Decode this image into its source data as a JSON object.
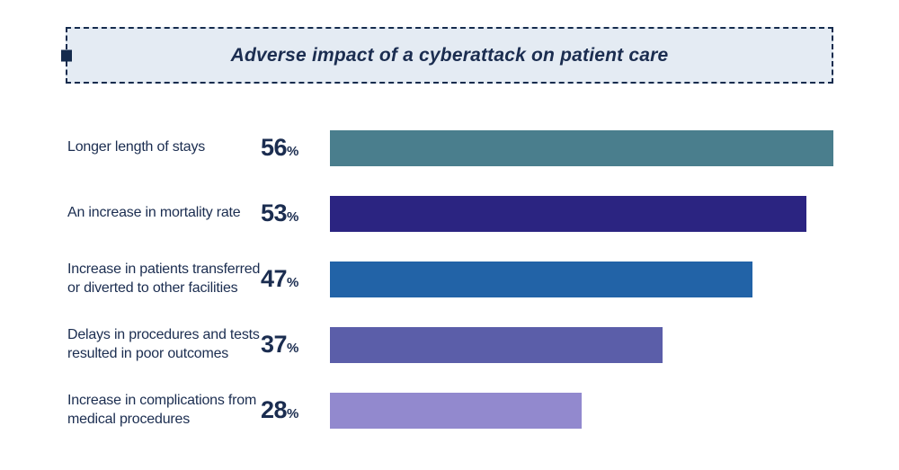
{
  "header": {
    "title": "Adverse impact of a cyberattack on patient care"
  },
  "colors": {
    "text_navy": "#1b2d50",
    "title_box_background": "#e4ebf3",
    "title_box_border": "#152b4d",
    "bar_teal": "#4a7e8d",
    "bar_indigo": "#2b2481",
    "bar_blue": "#2263a7",
    "bar_purple": "#5b5ea9",
    "bar_light_purple": "#9289ce"
  },
  "chart_data": {
    "type": "bar",
    "orientation": "horizontal",
    "title": "Adverse impact of a cyberattack on patient care",
    "unit": "%",
    "xlim": [
      0,
      62
    ],
    "grid": false,
    "legend": false,
    "categories": [
      "Longer length of stays",
      "An increase in mortality rate",
      "Increase in patients transferred or diverted to other facilities",
      "Delays in procedures and tests resulted in poor outcomes",
      "Increase in complications from medical procedures"
    ],
    "values": [
      56,
      53,
      47,
      37,
      28
    ],
    "rows": [
      {
        "label": "Longer length of stays",
        "value": 56,
        "color": "#4a7e8d"
      },
      {
        "label": "An increase in mortality rate",
        "value": 53,
        "color": "#2b2481"
      },
      {
        "label": "Increase in patients transferred or diverted to other facilities",
        "value": 47,
        "color": "#2263a7"
      },
      {
        "label": "Delays in procedures and tests resulted in poor outcomes",
        "value": 37,
        "color": "#5b5ea9"
      },
      {
        "label": "Increase in complications from medical procedures",
        "value": 28,
        "color": "#9289ce"
      }
    ]
  }
}
